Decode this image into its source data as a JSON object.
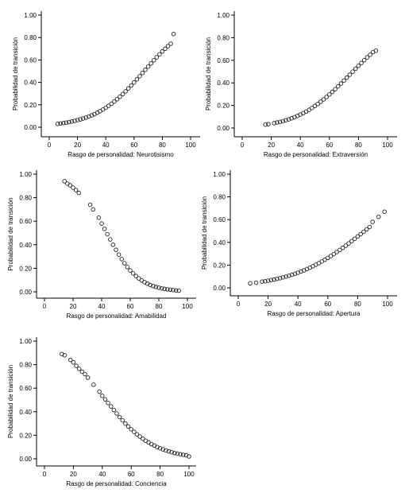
{
  "chart_data": [
    {
      "type": "scatter",
      "xlabel": "Rasgo de personalidad: Neurotisismo",
      "ylabel": "Probabilidad de transición",
      "xlim": [
        0,
        100
      ],
      "ylim": [
        0,
        1
      ],
      "xticks": [
        "0",
        "20",
        "40",
        "60",
        "80",
        "100"
      ],
      "yticks": [
        "0.00",
        "0.20",
        "0.40",
        "0.60",
        "0.80",
        "1.00"
      ],
      "grid": false,
      "series": [
        {
          "x": [
            6,
            8,
            10,
            12,
            14,
            16,
            18,
            20,
            22,
            24,
            26,
            28,
            30,
            32,
            34,
            36,
            38,
            40,
            42,
            44,
            46,
            48,
            50,
            52,
            54,
            56,
            58,
            60,
            62,
            64,
            66,
            68,
            70,
            72,
            74,
            76,
            78,
            80,
            82,
            84,
            86,
            88
          ],
          "y": [
            0.03,
            0.034,
            0.037,
            0.041,
            0.046,
            0.051,
            0.057,
            0.063,
            0.07,
            0.078,
            0.086,
            0.096,
            0.106,
            0.117,
            0.129,
            0.143,
            0.158,
            0.174,
            0.191,
            0.209,
            0.229,
            0.25,
            0.272,
            0.296,
            0.32,
            0.346,
            0.372,
            0.399,
            0.427,
            0.455,
            0.484,
            0.512,
            0.541,
            0.569,
            0.597,
            0.624,
            0.65,
            0.676,
            0.7,
            0.723,
            0.745,
            0.832
          ]
        }
      ]
    },
    {
      "type": "scatter",
      "xlabel": "Rasgo de personalidad: Extraversión",
      "ylabel": "Probabilidad de transición",
      "xlim": [
        0,
        100
      ],
      "ylim": [
        0,
        1
      ],
      "xticks": [
        "0",
        "20",
        "40",
        "60",
        "80",
        "100"
      ],
      "yticks": [
        "0.00",
        "0.20",
        "0.40",
        "0.60",
        "0.80",
        "1.00"
      ],
      "grid": false,
      "series": [
        {
          "x": [
            16,
            18,
            22,
            24,
            26,
            28,
            30,
            32,
            34,
            36,
            38,
            40,
            42,
            44,
            46,
            48,
            50,
            52,
            54,
            56,
            58,
            60,
            62,
            64,
            66,
            68,
            70,
            72,
            74,
            76,
            78,
            80,
            82,
            84,
            86,
            88,
            90,
            92
          ],
          "y": [
            0.03,
            0.034,
            0.043,
            0.049,
            0.055,
            0.061,
            0.069,
            0.077,
            0.086,
            0.096,
            0.107,
            0.119,
            0.132,
            0.146,
            0.161,
            0.177,
            0.195,
            0.213,
            0.233,
            0.253,
            0.275,
            0.297,
            0.32,
            0.344,
            0.369,
            0.394,
            0.42,
            0.446,
            0.472,
            0.499,
            0.525,
            0.551,
            0.576,
            0.601,
            0.626,
            0.649,
            0.672,
            0.685
          ]
        }
      ]
    },
    {
      "type": "scatter",
      "xlabel": "Rasgo de personalidad: Amabilidad",
      "ylabel": "Probabilidad de transición",
      "xlim": [
        0,
        100
      ],
      "ylim": [
        0,
        1
      ],
      "xticks": [
        "0",
        "20",
        "40",
        "60",
        "80",
        "100"
      ],
      "yticks": [
        "0.00",
        "0.20",
        "0.40",
        "0.60",
        "0.80",
        "1.00"
      ],
      "grid": false,
      "series": [
        {
          "x": [
            14,
            16,
            18,
            20,
            22,
            24,
            32,
            34,
            38,
            40,
            42,
            44,
            46,
            48,
            50,
            52,
            54,
            56,
            58,
            60,
            62,
            64,
            66,
            68,
            70,
            72,
            74,
            76,
            78,
            80,
            82,
            84,
            86,
            88,
            90,
            92,
            94
          ],
          "y": [
            0.94,
            0.92,
            0.905,
            0.885,
            0.865,
            0.84,
            0.74,
            0.7,
            0.63,
            0.58,
            0.535,
            0.49,
            0.445,
            0.4,
            0.357,
            0.316,
            0.278,
            0.243,
            0.211,
            0.182,
            0.157,
            0.134,
            0.114,
            0.097,
            0.082,
            0.069,
            0.058,
            0.049,
            0.041,
            0.035,
            0.029,
            0.025,
            0.021,
            0.018,
            0.015,
            0.012,
            0.01
          ]
        }
      ]
    },
    {
      "type": "scatter",
      "xlabel": "Rasgo de personalidad: Apertura",
      "ylabel": "Probabilidad de transición",
      "xlim": [
        0,
        100
      ],
      "ylim": [
        0,
        1
      ],
      "xticks": [
        "0",
        "20",
        "40",
        "60",
        "80",
        "100"
      ],
      "yticks": [
        "0.00",
        "0.20",
        "0.40",
        "0.60",
        "0.80",
        "1.00"
      ],
      "grid": false,
      "series": [
        {
          "x": [
            8,
            12,
            16,
            18,
            20,
            22,
            24,
            26,
            28,
            30,
            32,
            34,
            36,
            38,
            40,
            42,
            44,
            46,
            48,
            50,
            52,
            54,
            56,
            58,
            60,
            62,
            64,
            66,
            68,
            70,
            72,
            74,
            76,
            78,
            80,
            82,
            84,
            86,
            88,
            90,
            94,
            98
          ],
          "y": [
            0.04,
            0.045,
            0.055,
            0.058,
            0.063,
            0.068,
            0.073,
            0.079,
            0.085,
            0.092,
            0.099,
            0.107,
            0.115,
            0.124,
            0.133,
            0.143,
            0.154,
            0.165,
            0.177,
            0.19,
            0.203,
            0.217,
            0.232,
            0.247,
            0.263,
            0.28,
            0.297,
            0.315,
            0.333,
            0.352,
            0.371,
            0.391,
            0.411,
            0.431,
            0.452,
            0.472,
            0.493,
            0.514,
            0.535,
            0.58,
            0.625,
            0.67
          ]
        }
      ]
    },
    {
      "type": "scatter",
      "xlabel": "Rasgo de personalidad: Conciencia",
      "ylabel": "Probabilidad de transición",
      "xlim": [
        0,
        100
      ],
      "ylim": [
        0,
        1
      ],
      "xticks": [
        "0",
        "20",
        "40",
        "60",
        "80",
        "100"
      ],
      "yticks": [
        "0.00",
        "0.20",
        "0.40",
        "0.60",
        "0.80",
        "1.00"
      ],
      "grid": false,
      "series": [
        {
          "x": [
            12,
            14,
            18,
            20,
            22,
            24,
            26,
            28,
            30,
            34,
            38,
            40,
            42,
            44,
            46,
            48,
            50,
            52,
            54,
            56,
            58,
            60,
            62,
            64,
            66,
            68,
            70,
            72,
            74,
            76,
            78,
            80,
            82,
            84,
            86,
            88,
            90,
            92,
            94,
            96,
            98,
            100
          ],
          "y": [
            0.89,
            0.88,
            0.84,
            0.82,
            0.79,
            0.765,
            0.74,
            0.72,
            0.69,
            0.63,
            0.57,
            0.535,
            0.505,
            0.475,
            0.445,
            0.415,
            0.385,
            0.355,
            0.327,
            0.3,
            0.275,
            0.251,
            0.229,
            0.208,
            0.189,
            0.171,
            0.154,
            0.139,
            0.125,
            0.112,
            0.1,
            0.089,
            0.08,
            0.071,
            0.063,
            0.056,
            0.049,
            0.044,
            0.039,
            0.034,
            0.03,
            0.02
          ]
        }
      ]
    }
  ]
}
